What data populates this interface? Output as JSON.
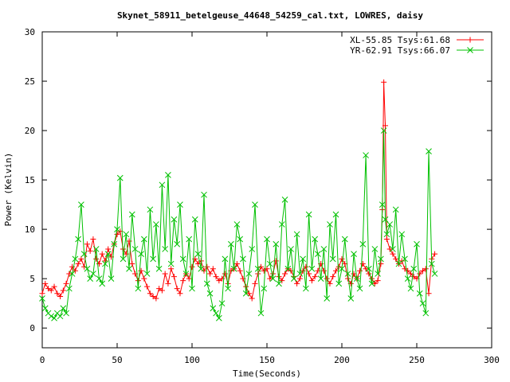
{
  "chart_data": {
    "type": "line",
    "title": "Skynet_58911_betelgeuse_44648_54259_cal.txt, LOWRES, daisy",
    "xlabel": "Time(Seconds)",
    "ylabel": "Power (Kelvin)",
    "xlim": [
      0,
      300
    ],
    "ylim": [
      -2,
      30
    ],
    "xticks": [
      "0",
      "50",
      "100",
      "150",
      "200",
      "250",
      "300"
    ],
    "yticks": [
      "0",
      "5",
      "10",
      "15",
      "20",
      "25",
      "30"
    ],
    "grid": false,
    "legend_position": "top-right",
    "series": [
      {
        "name": "XL-55.85 Tsys:61.68",
        "color": "#ff0000",
        "marker": "plus",
        "x": [
          0,
          2,
          4,
          6,
          8,
          10,
          12,
          14,
          16,
          18,
          20,
          22,
          24,
          26,
          28,
          30,
          32,
          34,
          36,
          38,
          40,
          42,
          44,
          46,
          48,
          50,
          52,
          54,
          56,
          58,
          60,
          62,
          64,
          66,
          68,
          70,
          72,
          74,
          76,
          78,
          80,
          82,
          84,
          86,
          88,
          90,
          92,
          94,
          96,
          98,
          100,
          102,
          104,
          106,
          108,
          110,
          112,
          114,
          116,
          118,
          120,
          122,
          124,
          126,
          128,
          130,
          132,
          134,
          136,
          138,
          140,
          142,
          144,
          146,
          148,
          150,
          152,
          154,
          156,
          158,
          160,
          162,
          164,
          166,
          168,
          170,
          172,
          174,
          176,
          178,
          180,
          182,
          184,
          186,
          188,
          190,
          192,
          194,
          196,
          198,
          200,
          202,
          204,
          206,
          208,
          210,
          212,
          214,
          216,
          218,
          220,
          222,
          224,
          226,
          227,
          228,
          229,
          230,
          232,
          234,
          236,
          238,
          240,
          242,
          244,
          246,
          248,
          250,
          252,
          254,
          256,
          258,
          260,
          262
        ],
        "values": [
          3.5,
          4.5,
          4.0,
          3.8,
          4.2,
          3.5,
          3.2,
          3.8,
          4.5,
          5.5,
          6.2,
          5.8,
          6.5,
          7.0,
          6.2,
          8.5,
          7.8,
          9.0,
          7.0,
          6.5,
          7.5,
          6.8,
          8.0,
          7.2,
          8.5,
          9.5,
          9.8,
          8.0,
          7.5,
          8.8,
          6.5,
          5.5,
          4.8,
          5.8,
          5.0,
          4.2,
          3.5,
          3.2,
          3.0,
          4.0,
          3.8,
          5.5,
          4.5,
          6.0,
          5.2,
          4.0,
          3.5,
          4.8,
          5.5,
          5.0,
          6.2,
          7.0,
          6.5,
          6.8,
          5.8,
          6.2,
          5.5,
          6.0,
          5.2,
          4.8,
          5.0,
          5.5,
          4.5,
          5.8,
          6.0,
          6.5,
          5.8,
          5.0,
          4.2,
          3.5,
          3.0,
          4.5,
          5.5,
          6.2,
          5.8,
          6.0,
          5.0,
          5.5,
          6.8,
          5.2,
          4.8,
          5.5,
          6.0,
          5.8,
          5.2,
          4.5,
          5.0,
          5.8,
          6.2,
          5.5,
          4.8,
          5.2,
          5.8,
          6.5,
          5.8,
          5.0,
          4.5,
          5.2,
          5.8,
          6.2,
          7.0,
          6.5,
          5.0,
          4.5,
          5.5,
          5.0,
          5.8,
          6.5,
          6.0,
          5.5,
          5.0,
          4.5,
          4.8,
          6.5,
          12.0,
          24.9,
          20.5,
          9.0,
          8.0,
          7.5,
          7.0,
          6.5,
          6.8,
          6.0,
          5.8,
          5.5,
          5.2,
          5.0,
          5.5,
          5.8,
          6.0,
          3.5,
          7.0,
          7.5
        ]
      },
      {
        "name": "YR-62.91 Tsys:66.07",
        "color": "#00c000",
        "marker": "cross",
        "x": [
          0,
          2,
          4,
          6,
          8,
          10,
          12,
          14,
          16,
          18,
          20,
          22,
          24,
          26,
          28,
          30,
          32,
          34,
          36,
          38,
          40,
          42,
          44,
          46,
          48,
          50,
          52,
          54,
          56,
          58,
          60,
          62,
          64,
          66,
          68,
          70,
          72,
          74,
          76,
          78,
          80,
          82,
          84,
          86,
          88,
          90,
          92,
          94,
          96,
          98,
          100,
          102,
          104,
          106,
          108,
          110,
          112,
          114,
          116,
          118,
          120,
          122,
          124,
          126,
          128,
          130,
          132,
          134,
          136,
          138,
          140,
          142,
          144,
          146,
          148,
          150,
          152,
          154,
          156,
          158,
          160,
          162,
          164,
          166,
          168,
          170,
          172,
          174,
          176,
          178,
          180,
          182,
          184,
          186,
          188,
          190,
          192,
          194,
          196,
          198,
          200,
          202,
          204,
          206,
          208,
          210,
          212,
          214,
          216,
          218,
          220,
          222,
          224,
          226,
          227,
          228,
          229,
          230,
          232,
          234,
          236,
          238,
          240,
          242,
          244,
          246,
          248,
          250,
          252,
          254,
          256,
          258,
          260,
          262
        ],
        "values": [
          3.0,
          2.0,
          1.5,
          1.2,
          1.0,
          1.5,
          1.2,
          2.0,
          1.5,
          4.0,
          5.5,
          7.0,
          9.0,
          12.5,
          7.5,
          6.0,
          5.0,
          5.5,
          8.0,
          5.0,
          4.5,
          6.5,
          7.5,
          5.0,
          8.5,
          10.0,
          15.2,
          7.0,
          9.5,
          6.0,
          11.5,
          8.0,
          4.0,
          7.5,
          9.0,
          5.5,
          12.0,
          7.0,
          10.5,
          6.0,
          14.5,
          8.0,
          15.5,
          6.5,
          11.0,
          8.5,
          12.5,
          7.0,
          5.5,
          9.0,
          4.0,
          11.0,
          7.5,
          6.0,
          13.5,
          4.5,
          3.5,
          2.0,
          1.5,
          1.0,
          2.5,
          7.0,
          4.0,
          8.5,
          6.0,
          10.5,
          9.0,
          7.0,
          3.5,
          5.5,
          8.0,
          12.5,
          6.0,
          1.5,
          4.0,
          9.0,
          6.5,
          5.0,
          8.5,
          4.5,
          10.5,
          13.0,
          6.0,
          8.0,
          5.0,
          9.5,
          5.5,
          7.0,
          4.0,
          11.5,
          6.0,
          9.0,
          7.5,
          5.0,
          8.0,
          3.0,
          10.5,
          7.0,
          11.5,
          4.5,
          6.0,
          9.0,
          5.5,
          3.0,
          7.5,
          5.0,
          4.0,
          8.5,
          17.5,
          6.0,
          4.5,
          8.0,
          5.5,
          7.0,
          12.5,
          20.0,
          11.0,
          9.5,
          10.5,
          8.0,
          12.0,
          6.5,
          9.5,
          7.0,
          5.0,
          4.0,
          6.0,
          8.5,
          3.5,
          2.5,
          1.5,
          17.9,
          6.5,
          5.5
        ]
      }
    ]
  }
}
